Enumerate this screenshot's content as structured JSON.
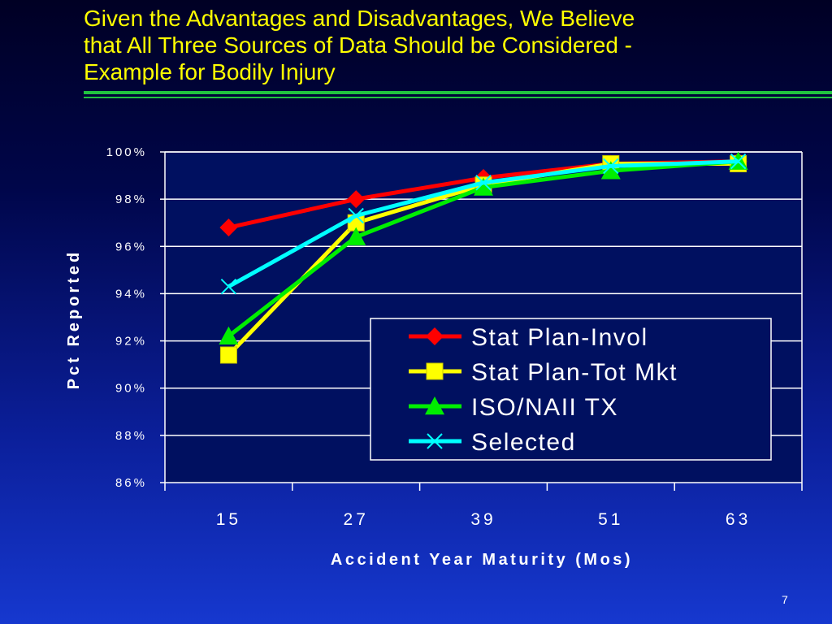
{
  "slide": {
    "title": "Given the Advantages and Disadvantages, We Believe\nthat All Three Sources of Data Should be Considered -\nExample for Bodily Injury",
    "page_number": "7"
  },
  "colors": {
    "title": "#ffff00",
    "rule": "#21c43f",
    "plot_background": "#001060",
    "text": "#ffffff"
  },
  "chart_data": {
    "type": "line",
    "title": "",
    "xlabel": "Accident Year Maturity (Mos)",
    "ylabel": "Pct Reported",
    "categories": [
      "15",
      "27",
      "39",
      "51",
      "63"
    ],
    "ylim": [
      86,
      100
    ],
    "yticks": [
      100,
      98,
      96,
      94,
      92,
      90,
      88,
      86
    ],
    "ytick_labels": [
      "100%",
      "98%",
      "96%",
      "94%",
      "92%",
      "90%",
      "88%",
      "86%"
    ],
    "grid": true,
    "legend_position": "bottom-right",
    "series": [
      {
        "name": "Stat Plan-Invol",
        "color": "#ff0000",
        "marker": "diamond",
        "values": [
          96.8,
          98.0,
          98.9,
          99.5,
          99.6
        ]
      },
      {
        "name": "Stat Plan-Tot Mkt",
        "color": "#ffff00",
        "marker": "square",
        "values": [
          91.4,
          97.0,
          98.6,
          99.5,
          99.5
        ]
      },
      {
        "name": "ISO/NAII TX",
        "color": "#00ee00",
        "marker": "triangle",
        "values": [
          92.2,
          96.4,
          98.5,
          99.2,
          99.6
        ]
      },
      {
        "name": "Selected",
        "color": "#00ffff",
        "marker": "x",
        "values": [
          94.3,
          97.3,
          98.7,
          99.4,
          99.6
        ]
      }
    ]
  }
}
